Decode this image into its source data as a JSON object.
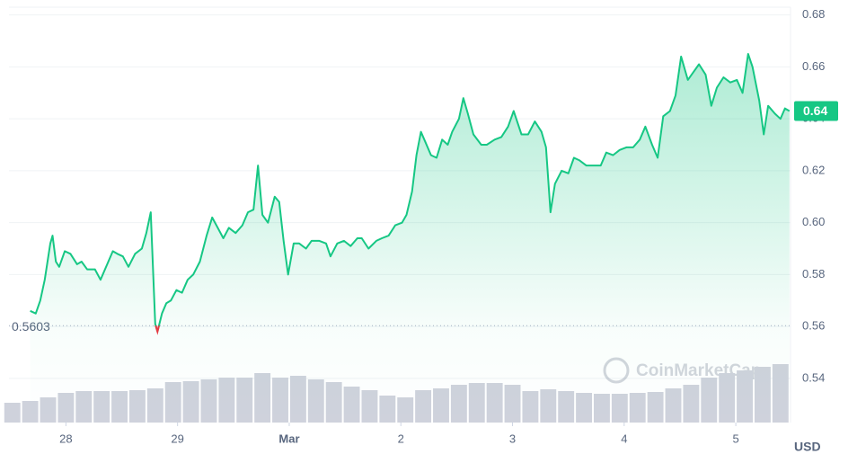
{
  "chart_data": {
    "type": "line",
    "color": "#16c784",
    "below_color": "#ea3943",
    "volume_color": "#cfd2dc",
    "grid": true,
    "xlim": [
      -0.51,
      6.49
    ],
    "xticks": [
      {
        "value": 0,
        "label": "28"
      },
      {
        "value": 1,
        "label": "29"
      },
      {
        "value": 2,
        "label": "Mar"
      },
      {
        "value": 3,
        "label": "2"
      },
      {
        "value": 4,
        "label": "3"
      },
      {
        "value": 5,
        "label": "4"
      },
      {
        "value": 6,
        "label": "5"
      }
    ],
    "ylim": [
      0.523,
      0.683
    ],
    "yticks": [
      0.54,
      0.56,
      0.58,
      {
        "value": 0.6,
        "label": "0.60"
      },
      0.62,
      0.64,
      0.66,
      0.68
    ],
    "y2lim": [
      0,
      100
    ],
    "y_axis_label": "USD",
    "reference_line": 0.5603,
    "current_price_label": "0.64",
    "watermark": "CoinMarketCap",
    "x": [
      -0.32,
      -0.27,
      -0.23,
      -0.19,
      -0.14,
      -0.12,
      -0.09,
      -0.06,
      -0.01,
      0.04,
      0.1,
      0.14,
      0.19,
      0.26,
      0.31,
      0.38,
      0.42,
      0.46,
      0.51,
      0.56,
      0.62,
      0.68,
      0.72,
      0.76,
      0.8,
      0.82,
      0.86,
      0.9,
      0.94,
      0.99,
      1.04,
      1.09,
      1.14,
      1.2,
      1.26,
      1.31,
      1.36,
      1.41,
      1.46,
      1.52,
      1.58,
      1.63,
      1.68,
      1.72,
      1.76,
      1.81,
      1.87,
      1.91,
      1.95,
      1.99,
      2.04,
      2.09,
      2.15,
      2.2,
      2.27,
      2.33,
      2.37,
      2.43,
      2.49,
      2.55,
      2.61,
      2.65,
      2.71,
      2.78,
      2.83,
      2.89,
      2.95,
      3.01,
      3.05,
      3.1,
      3.14,
      3.18,
      3.22,
      3.27,
      3.32,
      3.37,
      3.42,
      3.46,
      3.52,
      3.56,
      3.6,
      3.65,
      3.72,
      3.77,
      3.84,
      3.9,
      3.96,
      4.01,
      4.08,
      4.14,
      4.2,
      4.26,
      4.3,
      4.34,
      4.38,
      4.44,
      4.5,
      4.55,
      4.6,
      4.66,
      4.72,
      4.79,
      4.84,
      4.9,
      4.96,
      5.02,
      5.08,
      5.14,
      5.19,
      5.25,
      5.3,
      5.35,
      5.41,
      5.46,
      5.51,
      5.57,
      5.62,
      5.67,
      5.73,
      5.78,
      5.83,
      5.89,
      5.95,
      6.01,
      6.06,
      6.11,
      6.15,
      6.21,
      6.25,
      6.29,
      6.35,
      6.4,
      6.44,
      6.48
    ],
    "values": [
      0.566,
      0.565,
      0.57,
      0.578,
      0.592,
      0.595,
      0.585,
      0.583,
      0.589,
      0.588,
      0.584,
      0.585,
      0.582,
      0.582,
      0.578,
      0.585,
      0.589,
      0.588,
      0.587,
      0.583,
      0.588,
      0.59,
      0.596,
      0.604,
      0.561,
      0.558,
      0.565,
      0.569,
      0.57,
      0.574,
      0.573,
      0.578,
      0.58,
      0.585,
      0.595,
      0.602,
      0.598,
      0.594,
      0.598,
      0.596,
      0.599,
      0.604,
      0.605,
      0.622,
      0.603,
      0.6,
      0.61,
      0.608,
      0.593,
      0.58,
      0.592,
      0.592,
      0.59,
      0.593,
      0.593,
      0.592,
      0.587,
      0.592,
      0.593,
      0.591,
      0.594,
      0.594,
      0.59,
      0.593,
      0.594,
      0.595,
      0.599,
      0.6,
      0.603,
      0.612,
      0.626,
      0.635,
      0.631,
      0.626,
      0.625,
      0.632,
      0.63,
      0.635,
      0.64,
      0.648,
      0.642,
      0.634,
      0.63,
      0.63,
      0.632,
      0.633,
      0.637,
      0.643,
      0.634,
      0.634,
      0.639,
      0.635,
      0.629,
      0.604,
      0.615,
      0.62,
      0.619,
      0.625,
      0.624,
      0.622,
      0.622,
      0.622,
      0.627,
      0.626,
      0.628,
      0.629,
      0.629,
      0.632,
      0.637,
      0.63,
      0.625,
      0.641,
      0.643,
      0.649,
      0.664,
      0.655,
      0.658,
      0.661,
      0.657,
      0.645,
      0.652,
      0.656,
      0.654,
      0.655,
      0.65,
      0.665,
      0.66,
      0.647,
      0.634,
      0.645,
      0.642,
      0.64,
      0.644,
      0.643
    ],
    "volume": {
      "x": [
        -0.48,
        -0.32,
        -0.16,
        0,
        0.16,
        0.32,
        0.48,
        0.64,
        0.8,
        0.96,
        1.12,
        1.28,
        1.44,
        1.6,
        1.76,
        1.92,
        2.08,
        2.24,
        2.4,
        2.56,
        2.72,
        2.88,
        3.04,
        3.2,
        3.36,
        3.52,
        3.68,
        3.84,
        4.0,
        4.16,
        4.32,
        4.48,
        4.64,
        4.8,
        4.96,
        5.12,
        5.28,
        5.44,
        5.6,
        5.76,
        5.92,
        6.08,
        6.24,
        6.4
      ],
      "values": [
        22,
        24,
        28,
        33,
        35,
        35,
        35,
        36,
        38,
        45,
        46,
        48,
        50,
        50,
        55,
        50,
        52,
        48,
        45,
        40,
        36,
        30,
        28,
        36,
        38,
        42,
        44,
        44,
        42,
        35,
        37,
        35,
        33,
        32,
        32,
        33,
        34,
        38,
        42,
        50,
        55,
        58,
        62,
        65
      ]
    }
  }
}
